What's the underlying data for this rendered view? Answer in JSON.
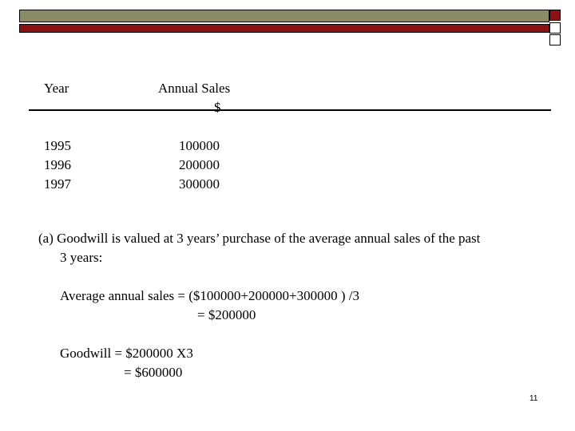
{
  "table": {
    "headers": {
      "year": "Year",
      "sales": "Annual Sales",
      "sales_unit": "$"
    },
    "rows": [
      {
        "year": "1995",
        "sales": "100000"
      },
      {
        "year": "1996",
        "sales": "200000"
      },
      {
        "year": "1997",
        "sales": "300000"
      }
    ]
  },
  "body": {
    "point_a_line1": "(a) Goodwill is valued at 3 years’ purchase of the average annual sales of the past",
    "point_a_line2": "3 years:",
    "avg_line1": "Average annual sales = ($100000+200000+300000 ) /3",
    "avg_line2": "= $200000",
    "goodwill_line1": "Goodwill = $200000 X3",
    "goodwill_line2": "= $600000"
  },
  "page_number": "11",
  "colors": {
    "olive": "#8b8b67",
    "maroon": "#8b1212"
  }
}
